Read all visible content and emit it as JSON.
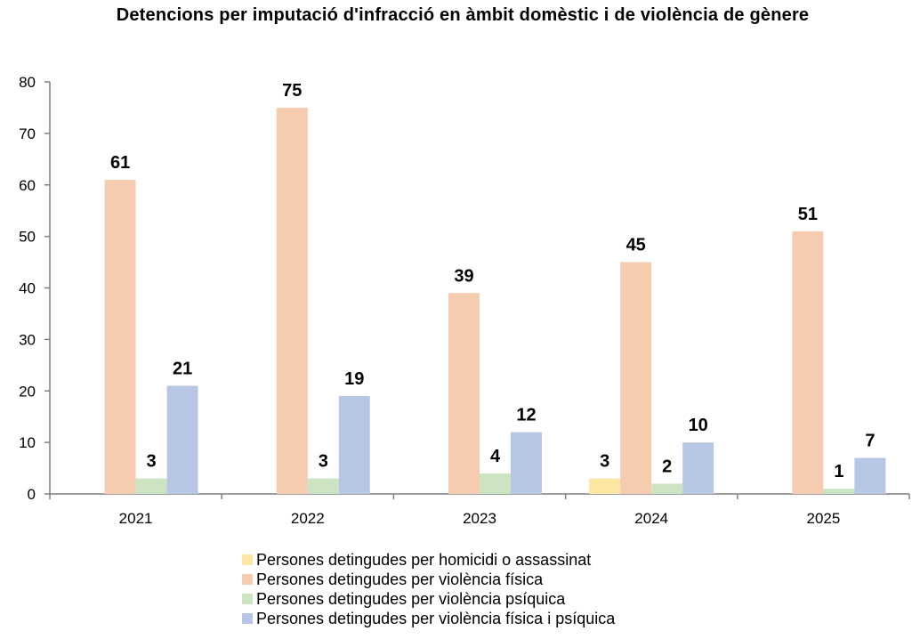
{
  "chart_data": {
    "type": "bar",
    "title": "Detencions per imputació d'infracció en àmbit domèstic i de violència de gènere",
    "categories": [
      "2021",
      "2022",
      "2023",
      "2024",
      "2025"
    ],
    "ylim": [
      0,
      80
    ],
    "yticks": [
      "0",
      "10",
      "20",
      "30",
      "40",
      "50",
      "60",
      "70",
      "80"
    ],
    "grid": false,
    "legend_position": "bottom",
    "series": [
      {
        "name": "Persones detingudes per homicidi o assassinat",
        "color": "#FBE7A1",
        "values": [
          0,
          0,
          0,
          3,
          0
        ],
        "labels": [
          "",
          "",
          "",
          "3",
          ""
        ]
      },
      {
        "name": "Persones detingudes per violència física",
        "color": "#F6CCB0",
        "values": [
          61,
          75,
          39,
          45,
          51
        ],
        "labels": [
          "61",
          "75",
          "39",
          "45",
          "51"
        ]
      },
      {
        "name": "Persones detingudes per violència psíquica",
        "color": "#CCE4C2",
        "values": [
          3,
          3,
          4,
          2,
          1
        ],
        "labels": [
          "3",
          "3",
          "4",
          "2",
          "1"
        ]
      },
      {
        "name": "Persones detingudes per violència física i psíquica",
        "color": "#B8C6E6",
        "values": [
          21,
          19,
          12,
          10,
          7
        ],
        "labels": [
          "21",
          "19",
          "12",
          "10",
          "7"
        ]
      }
    ]
  }
}
